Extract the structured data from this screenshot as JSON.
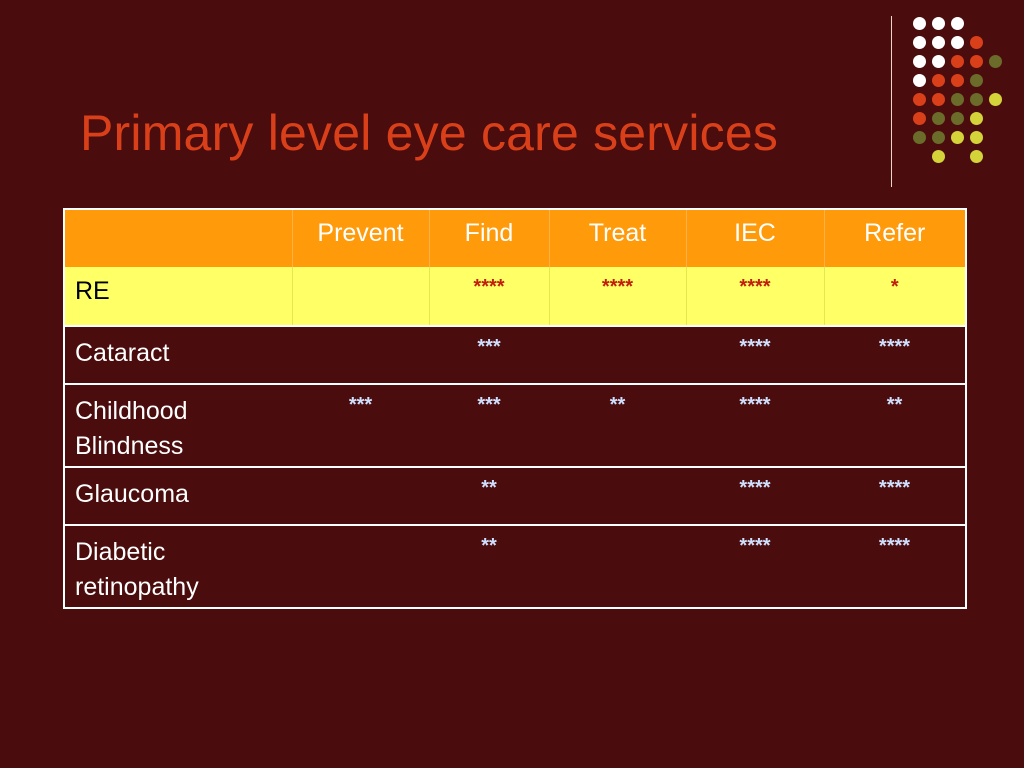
{
  "slide": {
    "title": "Primary level eye care services"
  },
  "colors": {
    "background": "#4a0c0d",
    "title": "#d9401a",
    "header_fill": "#ff9a0b",
    "highlight_row_fill": "#ffff66",
    "dot_white": "#ffffff",
    "dot_orange": "#d9401a",
    "dot_olive": "#6b6b2a",
    "dot_yellow": "#d4d43a"
  },
  "table": {
    "columns": [
      "",
      "Prevent",
      "Find",
      "Treat",
      "IEC",
      "Refer"
    ],
    "rows": [
      {
        "label": "RE",
        "cells": [
          "",
          "****",
          "****",
          "****",
          "*"
        ]
      },
      {
        "label": "Cataract",
        "cells": [
          "",
          "***",
          "",
          "****",
          "****"
        ]
      },
      {
        "label": "Childhood Blindness",
        "cells": [
          "***",
          "***",
          "**",
          "****",
          "**"
        ]
      },
      {
        "label": "Glaucoma",
        "cells": [
          "",
          "**",
          "",
          "****",
          "****"
        ]
      },
      {
        "label": "Diabetic retinopathy",
        "cells": [
          "",
          "**",
          "",
          "****",
          "****"
        ]
      }
    ]
  }
}
